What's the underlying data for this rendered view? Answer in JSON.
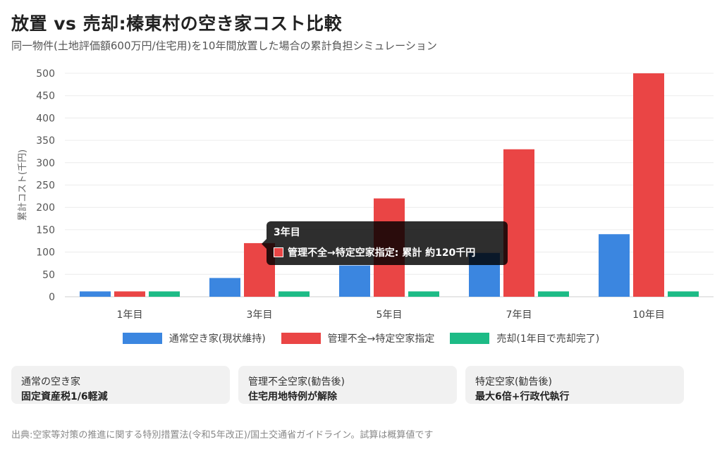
{
  "header": {
    "title": "放置 vs 売却:榛東村の空き家コスト比較",
    "subtitle": "同一物件(土地評価額600万円/住宅用)を10年間放置した場合の累計負担シミュレーション"
  },
  "chart_data": {
    "type": "bar",
    "ylabel": "累計コスト(千円)",
    "ylim": [
      0,
      500
    ],
    "yticks": [
      0,
      50,
      100,
      150,
      200,
      250,
      300,
      350,
      400,
      450,
      500
    ],
    "categories": [
      "1年目",
      "3年目",
      "5年目",
      "7年目",
      "10年目"
    ],
    "series": [
      {
        "name": "通常空き家(現状維持)",
        "color": "#3b86e0",
        "values": [
          12,
          42,
          70,
          98,
          140
        ]
      },
      {
        "name": "管理不全→特定空家指定",
        "color": "#ea4545",
        "values": [
          12,
          120,
          220,
          330,
          500
        ]
      },
      {
        "name": "売却(1年目で売却完了)",
        "color": "#1dbb86",
        "values": [
          12,
          12,
          12,
          12,
          12
        ]
      }
    ],
    "grid": true,
    "legend": "bottom"
  },
  "tooltip": {
    "title": "3年目",
    "text": "管理不全→特定空家指定: 累計 約120千円"
  },
  "cards": [
    {
      "label": "通常の空き家",
      "value": "固定資産税1/6軽減"
    },
    {
      "label": "管理不全空家(勧告後)",
      "value": "住宅用地特例が解除"
    },
    {
      "label": "特定空家(勧告後)",
      "value": "最大6倍+行政代執行"
    }
  ],
  "source": "出典:空家等対策の推進に関する特別措置法(令和5年改正)/国土交通省ガイドライン。試算は概算値です"
}
